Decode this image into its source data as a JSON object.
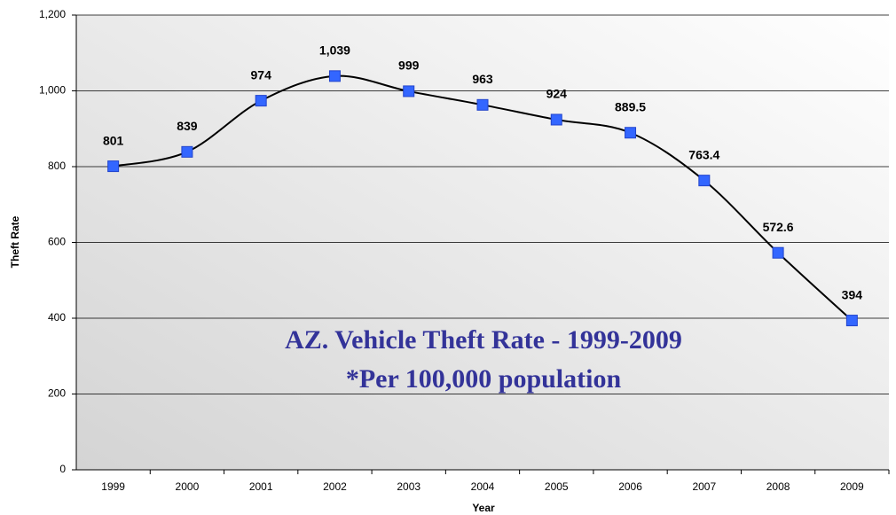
{
  "chart_data": {
    "type": "line",
    "title": [
      "AZ. Vehicle Theft Rate - 1999-2009",
      "*Per 100,000 population"
    ],
    "x_label": "Year",
    "y_label": "Theft Rate",
    "categories": [
      "1999",
      "2000",
      "2001",
      "2002",
      "2003",
      "2004",
      "2005",
      "2006",
      "2007",
      "2008",
      "2009"
    ],
    "series": [
      {
        "name": "Theft Rate",
        "color": "#3366ff",
        "line_color": "#000000",
        "values": [
          801,
          839,
          974,
          1039,
          999,
          963,
          924,
          889.5,
          763.4,
          572.6,
          394
        ],
        "value_labels": [
          "801",
          "839",
          "974",
          "1,039",
          "999",
          "963",
          "924",
          "889.5",
          "763.4",
          "572.6",
          "394"
        ]
      }
    ],
    "ylim": [
      0,
      1200
    ],
    "yticks": [
      0,
      200,
      400,
      600,
      800,
      {
        "value": 1000,
        "label": "1,000"
      },
      {
        "value": 1200,
        "label": "1,200"
      }
    ],
    "grid": true
  }
}
